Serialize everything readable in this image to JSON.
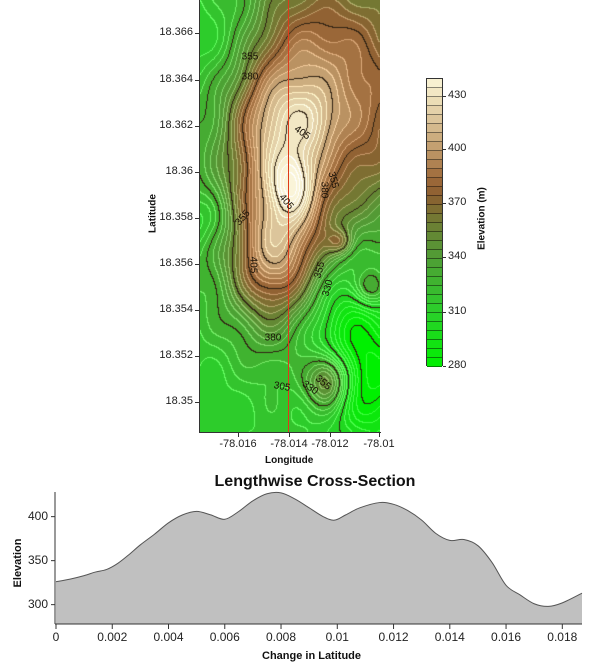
{
  "chart_data": [
    {
      "type": "heatmap",
      "subtype": "contour",
      "xlabel": "Longitude",
      "ylabel": "Latitude",
      "x_ticks": [
        "-78.016",
        "-78.014",
        "-78.012",
        "-78.01"
      ],
      "y_ticks": [
        "18.366",
        "18.364",
        "18.362",
        "18.36",
        "18.358",
        "18.356",
        "18.354",
        "18.352",
        "18.35"
      ],
      "xlim": [
        -78.0175,
        -78.0099
      ],
      "ylim": [
        18.3487,
        18.3674
      ],
      "colorbar": {
        "label": "Elevation (m)",
        "range": [
          280,
          440
        ],
        "step": 5,
        "ticks": [
          "430",
          "400",
          "370",
          "340",
          "310",
          "280"
        ]
      },
      "contour_interval": 5,
      "labeled_contours": [
        305,
        330,
        355,
        380,
        405
      ],
      "contour_labels": [
        "355",
        "380",
        "405",
        "405",
        "380",
        "355",
        "355",
        "405",
        "355",
        "330",
        "380",
        "305",
        "330",
        "355"
      ],
      "transect_longitude": -78.0138,
      "colors": {
        "low": "#00f000",
        "mid": "#8c5f30",
        "high": "#faf4d8",
        "transect": "#e03a1a"
      }
    },
    {
      "type": "area",
      "title": "Lengthwise Cross-Section",
      "xlabel": "Change in Latitude",
      "ylabel": "Elevation",
      "x_ticks": [
        "0",
        "0.002",
        "0.004",
        "0.006",
        "0.008",
        "0.01",
        "0.012",
        "0.014",
        "0.016",
        "0.018"
      ],
      "y_ticks": [
        "400",
        "350",
        "300"
      ],
      "xlim": [
        0,
        0.0187
      ],
      "ylim": [
        278,
        428
      ],
      "x": [
        0,
        0.0005,
        0.001,
        0.0014,
        0.0018,
        0.0022,
        0.0026,
        0.003,
        0.0035,
        0.004,
        0.0045,
        0.005,
        0.0055,
        0.006,
        0.0065,
        0.007,
        0.0075,
        0.008,
        0.0085,
        0.009,
        0.0095,
        0.0099,
        0.0103,
        0.0108,
        0.0115,
        0.012,
        0.0125,
        0.013,
        0.0135,
        0.014,
        0.0145,
        0.015,
        0.0155,
        0.016,
        0.0165,
        0.017,
        0.0175,
        0.018,
        0.0187
      ],
      "values": [
        326,
        329,
        333,
        337,
        340,
        347,
        357,
        368,
        380,
        393,
        402,
        406,
        402,
        397,
        406,
        418,
        426,
        427,
        420,
        410,
        400,
        396,
        402,
        410,
        416,
        414,
        407,
        396,
        381,
        373,
        374,
        367,
        348,
        322,
        311,
        301,
        298,
        302,
        313
      ],
      "colors": {
        "fill": "#c0c0c0",
        "line": "#555555"
      }
    }
  ]
}
